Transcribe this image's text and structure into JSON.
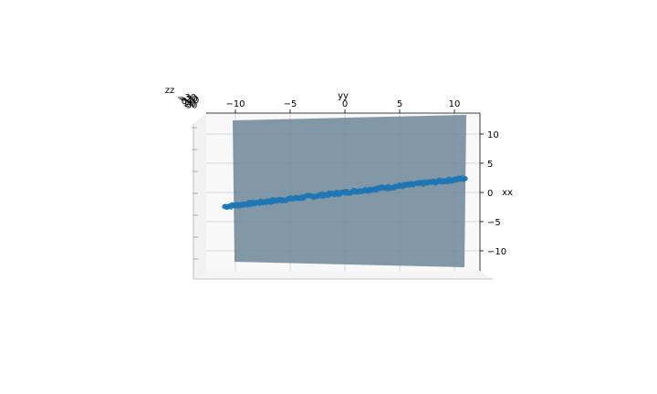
{
  "chart_data": {
    "type": "scatter",
    "projection": "3d",
    "axes": {
      "x": {
        "label": "xx",
        "ticks": [
          10,
          5,
          0,
          -5,
          -10
        ],
        "range": [
          -12,
          12
        ]
      },
      "y": {
        "label": "yy",
        "ticks": [
          -10,
          -5,
          0,
          5,
          10
        ],
        "range": [
          -12,
          12
        ]
      },
      "z": {
        "label": "zz",
        "ticks": [
          -30,
          -20,
          -10,
          0,
          10,
          20,
          30
        ],
        "tick_labels": [
          "−30",
          "−20",
          "−10",
          "0",
          "10",
          "20",
          "30"
        ],
        "range": [
          -35,
          35
        ]
      }
    },
    "plane": {
      "color": "#6e8799",
      "opacity": 0.85
    },
    "scatter": {
      "color": "#1f77b4",
      "y_range": [
        -11,
        11
      ],
      "x_over_y_slope": 0.22,
      "n_points": 220
    },
    "grid": true,
    "legend": "none"
  }
}
